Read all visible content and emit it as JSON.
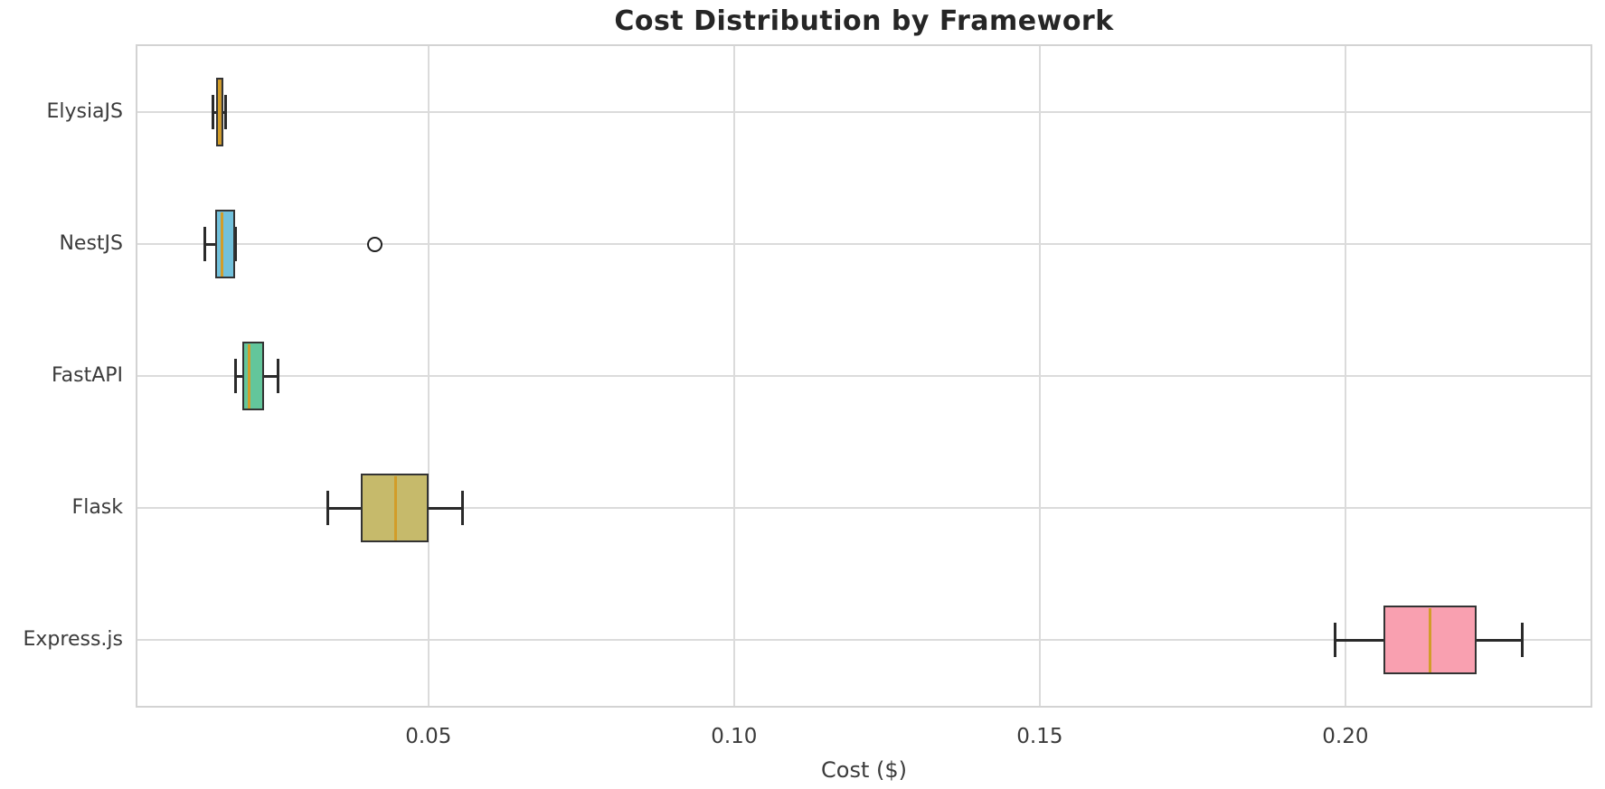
{
  "title": "Cost Distribution by Framework",
  "chart_data": {
    "type": "boxplot",
    "orientation": "horizontal",
    "title": "Cost Distribution by Framework",
    "xlabel": "Cost ($)",
    "ylabel": "",
    "xlim": [
      0.0024,
      0.2401
    ],
    "x_ticks": [
      0.05,
      0.1,
      0.15,
      0.2
    ],
    "x_tick_labels": [
      "0.05",
      "0.10",
      "0.15",
      "0.20"
    ],
    "grid": true,
    "legend": "none",
    "categories": [
      "ElysiaJS",
      "NestJS",
      "FastAPI",
      "Flask",
      "Express.js"
    ],
    "series": [
      {
        "label": "ElysiaJS",
        "whisker_low": 0.0148,
        "q1": 0.0153,
        "median": 0.0158,
        "q3": 0.0164,
        "whisker_high": 0.0168,
        "outliers": [],
        "fill_color": "#c79432"
      },
      {
        "label": "NestJS",
        "whisker_low": 0.0134,
        "q1": 0.0151,
        "median": 0.0163,
        "q3": 0.0184,
        "whisker_high": 0.0184,
        "outliers": [
          0.0412
        ],
        "fill_color": "#72c1dc"
      },
      {
        "label": "FastAPI",
        "whisker_low": 0.0185,
        "q1": 0.0195,
        "median": 0.0207,
        "q3": 0.0231,
        "whisker_high": 0.0254,
        "outliers": [],
        "fill_color": "#63c69b"
      },
      {
        "label": "Flask",
        "whisker_low": 0.0336,
        "q1": 0.0389,
        "median": 0.0447,
        "q3": 0.0501,
        "whisker_high": 0.0556,
        "outliers": [],
        "fill_color": "#c6ba6b"
      },
      {
        "label": "Express.js",
        "whisker_low": 0.1983,
        "q1": 0.2063,
        "median": 0.2138,
        "q3": 0.2215,
        "whisker_high": 0.229,
        "outliers": [],
        "fill_color": "#f9a0b0"
      }
    ],
    "style": {
      "median_color": "#d29d29",
      "box_edge_color": "#333333",
      "whisker_color": "#2a2a2a",
      "outlier_edge_color": "#1f1f1f",
      "grid_color": "#dbdbdb",
      "plot_border_color": "#d3d3d3",
      "title_color": "#262626",
      "tick_label_color": "#3b3b3b",
      "background_color": "#ffffff"
    }
  }
}
